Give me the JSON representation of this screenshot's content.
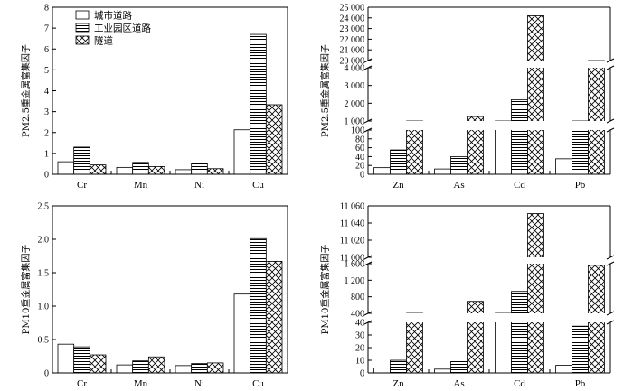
{
  "legend": [
    "城市道路",
    "工业园区道路",
    "隧道"
  ],
  "chart_data": [
    {
      "id": "pm25-common",
      "type": "bar",
      "ylabel": "PM2.5重金属富集因子",
      "categories": [
        "Cr",
        "Mn",
        "Ni",
        "Cu"
      ],
      "ylim": [
        0,
        8
      ],
      "yticks": [
        "0",
        "1",
        "2",
        "3",
        "4",
        "5",
        "6",
        "7",
        "8"
      ],
      "series": [
        {
          "name": "城市道路",
          "values": [
            0.6,
            0.33,
            0.22,
            2.13
          ]
        },
        {
          "name": "工业园区道路",
          "values": [
            1.3,
            0.57,
            0.53,
            6.7
          ]
        },
        {
          "name": "隧道",
          "values": [
            0.45,
            0.37,
            0.27,
            3.33
          ]
        }
      ]
    },
    {
      "id": "pm25-enriched",
      "type": "bar",
      "ylabel": "PM2.5重金属富集因子",
      "categories": [
        "Zn",
        "As",
        "Cd",
        "Pb"
      ],
      "ylim": [
        0,
        25000
      ],
      "axis_breaks": [
        [
          100,
          1000
        ],
        [
          4000,
          20000
        ]
      ],
      "yticks": [
        "0",
        "20",
        "40",
        "60",
        "80",
        "100",
        "1 000",
        "2 000",
        "3 000",
        "4 000",
        "20 000",
        "21 000",
        "22 000",
        "23 000",
        "24 000",
        "25 000"
      ],
      "series": [
        {
          "name": "城市道路",
          "values": [
            15,
            12,
            800,
            35
          ]
        },
        {
          "name": "工业园区道路",
          "values": [
            55,
            40,
            2200,
            1000
          ]
        },
        {
          "name": "隧道",
          "values": [
            105,
            1250,
            24200,
            4050
          ]
        }
      ]
    },
    {
      "id": "pm10-common",
      "type": "bar",
      "ylabel": "PM10重金属富集因子",
      "categories": [
        "Cr",
        "Mn",
        "Ni",
        "Cu"
      ],
      "ylim": [
        0,
        2.5
      ],
      "yticks": [
        "0",
        "0.5",
        "1.0",
        "1.5",
        "2.0",
        "2.5"
      ],
      "series": [
        {
          "name": "城市道路",
          "values": [
            0.43,
            0.12,
            0.11,
            1.18
          ]
        },
        {
          "name": "工业园区道路",
          "values": [
            0.39,
            0.18,
            0.14,
            2.01
          ]
        },
        {
          "name": "隧道",
          "values": [
            0.27,
            0.24,
            0.15,
            1.67
          ]
        }
      ]
    },
    {
      "id": "pm10-enriched",
      "type": "bar",
      "ylabel": "PM10重金属富集因子",
      "categories": [
        "Zn",
        "As",
        "Cd",
        "Pb"
      ],
      "ylim": [
        0,
        11060
      ],
      "axis_breaks": [
        [
          40,
          400
        ],
        [
          1600,
          11000
        ]
      ],
      "yticks": [
        "0",
        "10",
        "20",
        "30",
        "40",
        "400",
        "800",
        "1 200",
        "1 600",
        "11 000",
        "11 020",
        "11 040",
        "11 060"
      ],
      "series": [
        {
          "name": "城市道路",
          "values": [
            4,
            3,
            370,
            6
          ]
        },
        {
          "name": "工业园区道路",
          "values": [
            10,
            9,
            930,
            37
          ]
        },
        {
          "name": "隧道",
          "values": [
            42,
            690,
            11051,
            1560
          ]
        }
      ]
    }
  ]
}
